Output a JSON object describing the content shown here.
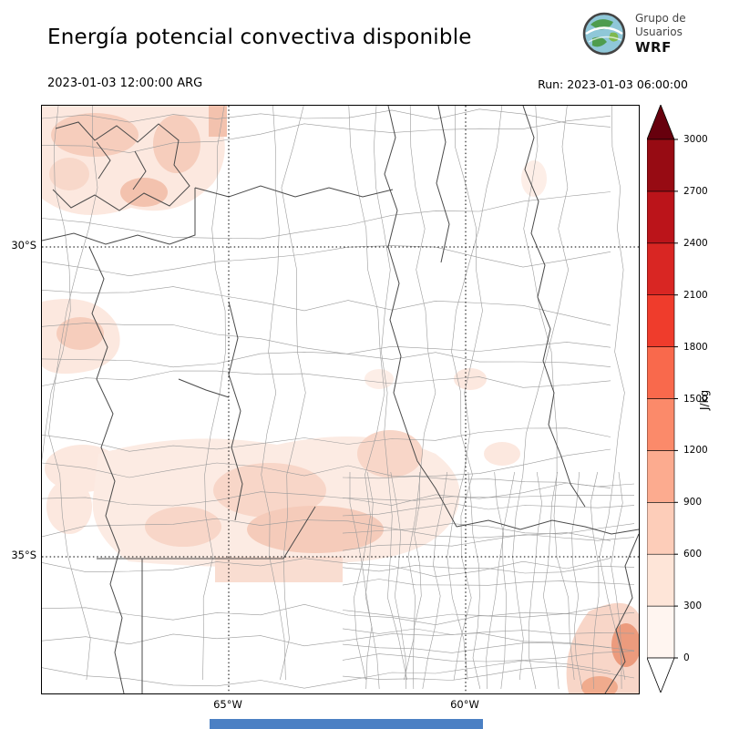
{
  "header": {
    "title": "Energía potencial convectiva disponible",
    "logo": {
      "line1": "Grupo de",
      "line2": "Usuarios",
      "line3": "WRF"
    },
    "valid_time": "2023-01-03 12:00:00 ARG",
    "run_time": "Run: 2023-01-03 06:00:00"
  },
  "map": {
    "lat_labels": [
      "30°S",
      "35°S"
    ],
    "lon_labels": [
      "65°W",
      "60°W"
    ]
  },
  "colorbar": {
    "label": "J/kg",
    "ticks": [
      0,
      300,
      600,
      900,
      1200,
      1500,
      1800,
      2100,
      2400,
      2700,
      3000
    ],
    "colors": [
      "#fff5f0",
      "#fee5d8",
      "#fdcdb9",
      "#fcab8f",
      "#fb8a6a",
      "#f9694c",
      "#ef3c2c",
      "#d92623",
      "#bb141a",
      "#970b13"
    ],
    "under_color": "#ffffff",
    "over_color": "#67000d"
  },
  "chart_data": {
    "type": "heatmap",
    "title": "Energía potencial convectiva disponible",
    "units": "J/kg",
    "valid_time": "2023-01-03 12:00:00 ARG",
    "run_time": "Run: 2023-01-03 06:00:00",
    "colorbar_range": [
      0,
      3000
    ],
    "colorbar_step": 300,
    "lat_gridlines": [
      "30°S",
      "35°S"
    ],
    "lon_gridlines": [
      "65°W",
      "60°W"
    ],
    "observed_values": "CAPE mostly 0–300 J/kg over the mapped region; patches of roughly 300–600 J/kg over the northwest, the central plains and the southeast coast"
  }
}
